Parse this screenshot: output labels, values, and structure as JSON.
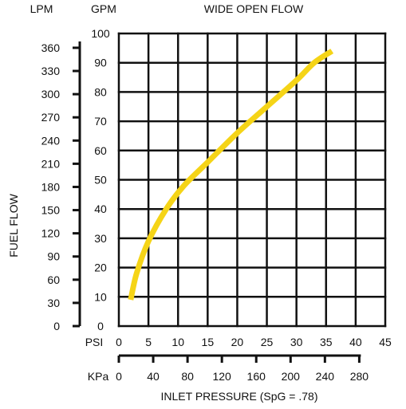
{
  "chart_data": {
    "type": "line",
    "title": "WIDE OPEN FLOW",
    "ylabel": "FUEL FLOW",
    "xlabel": "INLET PRESSURE (SpG = .78)",
    "y_primary": {
      "unit_label": "GPM",
      "range": [
        0,
        100
      ],
      "ticks": [
        "0",
        "10",
        "20",
        "30",
        "40",
        "50",
        "60",
        "70",
        "80",
        "90",
        "100"
      ]
    },
    "y_secondary": {
      "unit_label": "LPM",
      "ticks": [
        "0",
        "30",
        "60",
        "90",
        "120",
        "150",
        "180",
        "210",
        "240",
        "270",
        "300",
        "330",
        "360"
      ],
      "tick_values_lpm": [
        0,
        30,
        60,
        90,
        120,
        150,
        180,
        210,
        240,
        270,
        300,
        330,
        360
      ],
      "lpm_per_gpm": 3.785
    },
    "x_primary": {
      "unit_label": "PSI",
      "range": [
        0,
        45
      ],
      "ticks": [
        "0",
        "5",
        "10",
        "15",
        "20",
        "25",
        "30",
        "35",
        "40",
        "45"
      ]
    },
    "x_secondary": {
      "unit_label": "KPa",
      "ticks": [
        "0",
        "40",
        "80",
        "120",
        "160",
        "200",
        "240",
        "280"
      ],
      "tick_values_kpa": [
        0,
        40,
        80,
        120,
        160,
        200,
        240,
        280
      ],
      "kpa_per_psi": 6.895
    },
    "grid": true,
    "series": [
      {
        "color": "#f5d417",
        "x": [
          2,
          3,
          5,
          8,
          11,
          15,
          20,
          25,
          30,
          33,
          36
        ],
        "y": [
          9,
          18,
          29,
          40,
          48,
          56,
          66,
          75,
          84,
          90,
          94
        ]
      }
    ]
  }
}
